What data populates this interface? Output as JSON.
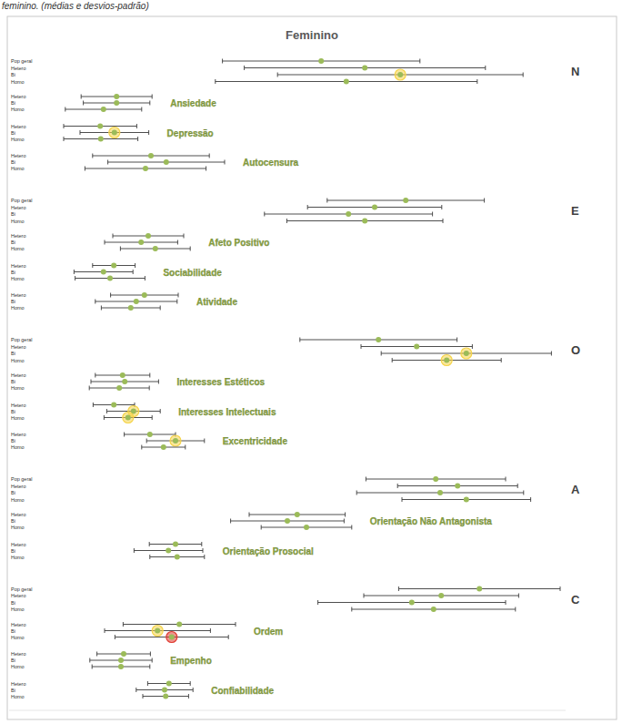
{
  "chart_data": {
    "type": "dot_errorbar",
    "caption": "feminino. (médias e desvios-padrão)",
    "title": "Feminino",
    "color": "#9bbb59",
    "xlim": [
      0,
      102
    ],
    "xticks": [],
    "tick_labels": false,
    "grid": false,
    "series": [
      {
        "name": "N",
        "type": "factor",
        "categories": [
          "Pop geral",
          "Hetero",
          "Bi",
          "Homo"
        ],
        "values": [
          57.2,
          65.2,
          71.7,
          61.8
        ],
        "errors": [
          18.1,
          22.1,
          22.5,
          24.0
        ],
        "colors": [
          "#9bbb59",
          "#9bbb59",
          "#f5d44a",
          "#9bbb59"
        ]
      },
      {
        "name": "Ansiedade",
        "type": "facet",
        "categories": [
          "Hetero",
          "Bi",
          "Homo"
        ],
        "values": [
          19.7,
          19.7,
          17.3
        ],
        "errors": [
          6.5,
          6.1,
          7.0
        ],
        "colors": [
          "#9bbb59",
          "#9bbb59",
          "#9bbb59"
        ]
      },
      {
        "name": "Depressão",
        "type": "facet",
        "categories": [
          "Hetero",
          "Bi",
          "Homo"
        ],
        "values": [
          16.7,
          19.3,
          16.8
        ],
        "errors": [
          6.7,
          6.3,
          6.8
        ],
        "colors": [
          "#9bbb59",
          "#f5d44a",
          "#9bbb59"
        ]
      },
      {
        "name": "Autocensura",
        "type": "facet",
        "categories": [
          "Hetero",
          "Bi",
          "Homo"
        ],
        "values": [
          26.0,
          28.8,
          25.0
        ],
        "errors": [
          10.7,
          10.7,
          11.1
        ],
        "colors": [
          "#9bbb59",
          "#9bbb59",
          "#9bbb59"
        ]
      },
      {
        "name": "E",
        "type": "factor",
        "categories": [
          "Pop geral",
          "Hetero",
          "Bi",
          "Homo"
        ],
        "values": [
          72.7,
          67.0,
          62.2,
          65.2
        ],
        "errors": [
          14.4,
          12.3,
          15.4,
          14.3
        ],
        "colors": [
          "#9bbb59",
          "#9bbb59",
          "#9bbb59",
          "#9bbb59"
        ]
      },
      {
        "name": "Afeto Positivo",
        "type": "facet",
        "categories": [
          "Hetero",
          "Bi",
          "Homo"
        ],
        "values": [
          25.5,
          24.2,
          26.8
        ],
        "errors": [
          6.5,
          6.7,
          6.4
        ],
        "colors": [
          "#9bbb59",
          "#9bbb59",
          "#9bbb59"
        ]
      },
      {
        "name": "Sociabilidade",
        "type": "facet",
        "categories": [
          "Hetero",
          "Bi",
          "Homo"
        ],
        "values": [
          19.2,
          17.3,
          18.5
        ],
        "errors": [
          3.9,
          5.4,
          6.4
        ],
        "colors": [
          "#9bbb59",
          "#9bbb59",
          "#9bbb59"
        ]
      },
      {
        "name": "Atividade",
        "type": "facet",
        "categories": [
          "Hetero",
          "Bi",
          "Homo"
        ],
        "values": [
          24.8,
          23.3,
          22.3
        ],
        "errors": [
          6.2,
          7.5,
          5.4
        ],
        "colors": [
          "#9bbb59",
          "#9bbb59",
          "#9bbb59"
        ]
      },
      {
        "name": "O",
        "type": "factor",
        "categories": [
          "Pop geral",
          "Hetero",
          "Bi",
          "Homo"
        ],
        "values": [
          67.7,
          74.7,
          83.8,
          80.2
        ],
        "errors": [
          14.4,
          10.2,
          15.6,
          10.0
        ],
        "colors": [
          "#9bbb59",
          "#9bbb59",
          "#f5d44a",
          "#f5d44a"
        ]
      },
      {
        "name": "Interesses Estéticos",
        "type": "facet",
        "categories": [
          "Hetero",
          "Bi",
          "Homo"
        ],
        "values": [
          20.8,
          21.2,
          20.2
        ],
        "errors": [
          5.0,
          6.2,
          5.5
        ],
        "colors": [
          "#9bbb59",
          "#9bbb59",
          "#9bbb59"
        ]
      },
      {
        "name": "Interesses Intelectuais",
        "type": "facet",
        "categories": [
          "Hetero",
          "Bi",
          "Homo"
        ],
        "values": [
          19.2,
          22.8,
          21.8
        ],
        "errors": [
          3.8,
          4.9,
          4.4
        ],
        "colors": [
          "#9bbb59",
          "#f5d44a",
          "#f5d44a"
        ]
      },
      {
        "name": "Excentricidade",
        "type": "facet",
        "categories": [
          "Hetero",
          "Bi",
          "Homo"
        ],
        "values": [
          25.8,
          30.5,
          28.3
        ],
        "errors": [
          4.7,
          5.3,
          4.0
        ],
        "colors": [
          "#9bbb59",
          "#f5d44a",
          "#9bbb59"
        ]
      },
      {
        "name": "A",
        "type": "factor",
        "categories": [
          "Pop geral",
          "Hetero",
          "Bi",
          "Homo"
        ],
        "values": [
          78.2,
          82.2,
          79.0,
          83.8
        ],
        "errors": [
          12.8,
          11.0,
          15.3,
          11.8
        ],
        "colors": [
          "#9bbb59",
          "#9bbb59",
          "#9bbb59",
          "#9bbb59"
        ]
      },
      {
        "name": "Orientação Não Antagonista",
        "type": "facet",
        "categories": [
          "Hetero",
          "Bi",
          "Homo"
        ],
        "values": [
          52.8,
          51.0,
          54.5
        ],
        "errors": [
          8.8,
          10.4,
          8.3
        ],
        "colors": [
          "#9bbb59",
          "#9bbb59",
          "#9bbb59"
        ]
      },
      {
        "name": "Orientação Prosocial",
        "type": "facet",
        "categories": [
          "Hetero",
          "Bi",
          "Homo"
        ],
        "values": [
          30.5,
          29.2,
          30.8
        ],
        "errors": [
          4.8,
          6.3,
          5.0
        ],
        "colors": [
          "#9bbb59",
          "#9bbb59",
          "#9bbb59"
        ]
      },
      {
        "name": "C",
        "type": "factor",
        "categories": [
          "Pop geral",
          "Hetero",
          "Bi",
          "Homo"
        ],
        "values": [
          86.2,
          79.2,
          73.8,
          77.8
        ],
        "errors": [
          14.8,
          14.2,
          17.2,
          15.0
        ],
        "colors": [
          "#9bbb59",
          "#9bbb59",
          "#9bbb59",
          "#9bbb59"
        ]
      },
      {
        "name": "Ordem",
        "type": "facet",
        "categories": [
          "Hetero",
          "Bi",
          "Homo"
        ],
        "values": [
          31.2,
          27.2,
          29.8
        ],
        "errors": [
          10.3,
          9.7,
          10.4
        ],
        "colors": [
          "#9bbb59",
          "#f5d44a",
          "#e03c31"
        ]
      },
      {
        "name": "Empenho",
        "type": "facet",
        "categories": [
          "Hetero",
          "Bi",
          "Homo"
        ],
        "values": [
          21.0,
          20.5,
          20.5
        ],
        "errors": [
          4.9,
          5.7,
          5.3
        ],
        "colors": [
          "#9bbb59",
          "#9bbb59",
          "#9bbb59"
        ]
      },
      {
        "name": "Confiabilidade",
        "type": "facet",
        "categories": [
          "Hetero",
          "Bi",
          "Homo"
        ],
        "values": [
          29.3,
          28.5,
          28.7
        ],
        "errors": [
          3.9,
          5.2,
          4.2
        ],
        "colors": [
          "#9bbb59",
          "#9bbb59",
          "#9bbb59"
        ]
      }
    ]
  }
}
